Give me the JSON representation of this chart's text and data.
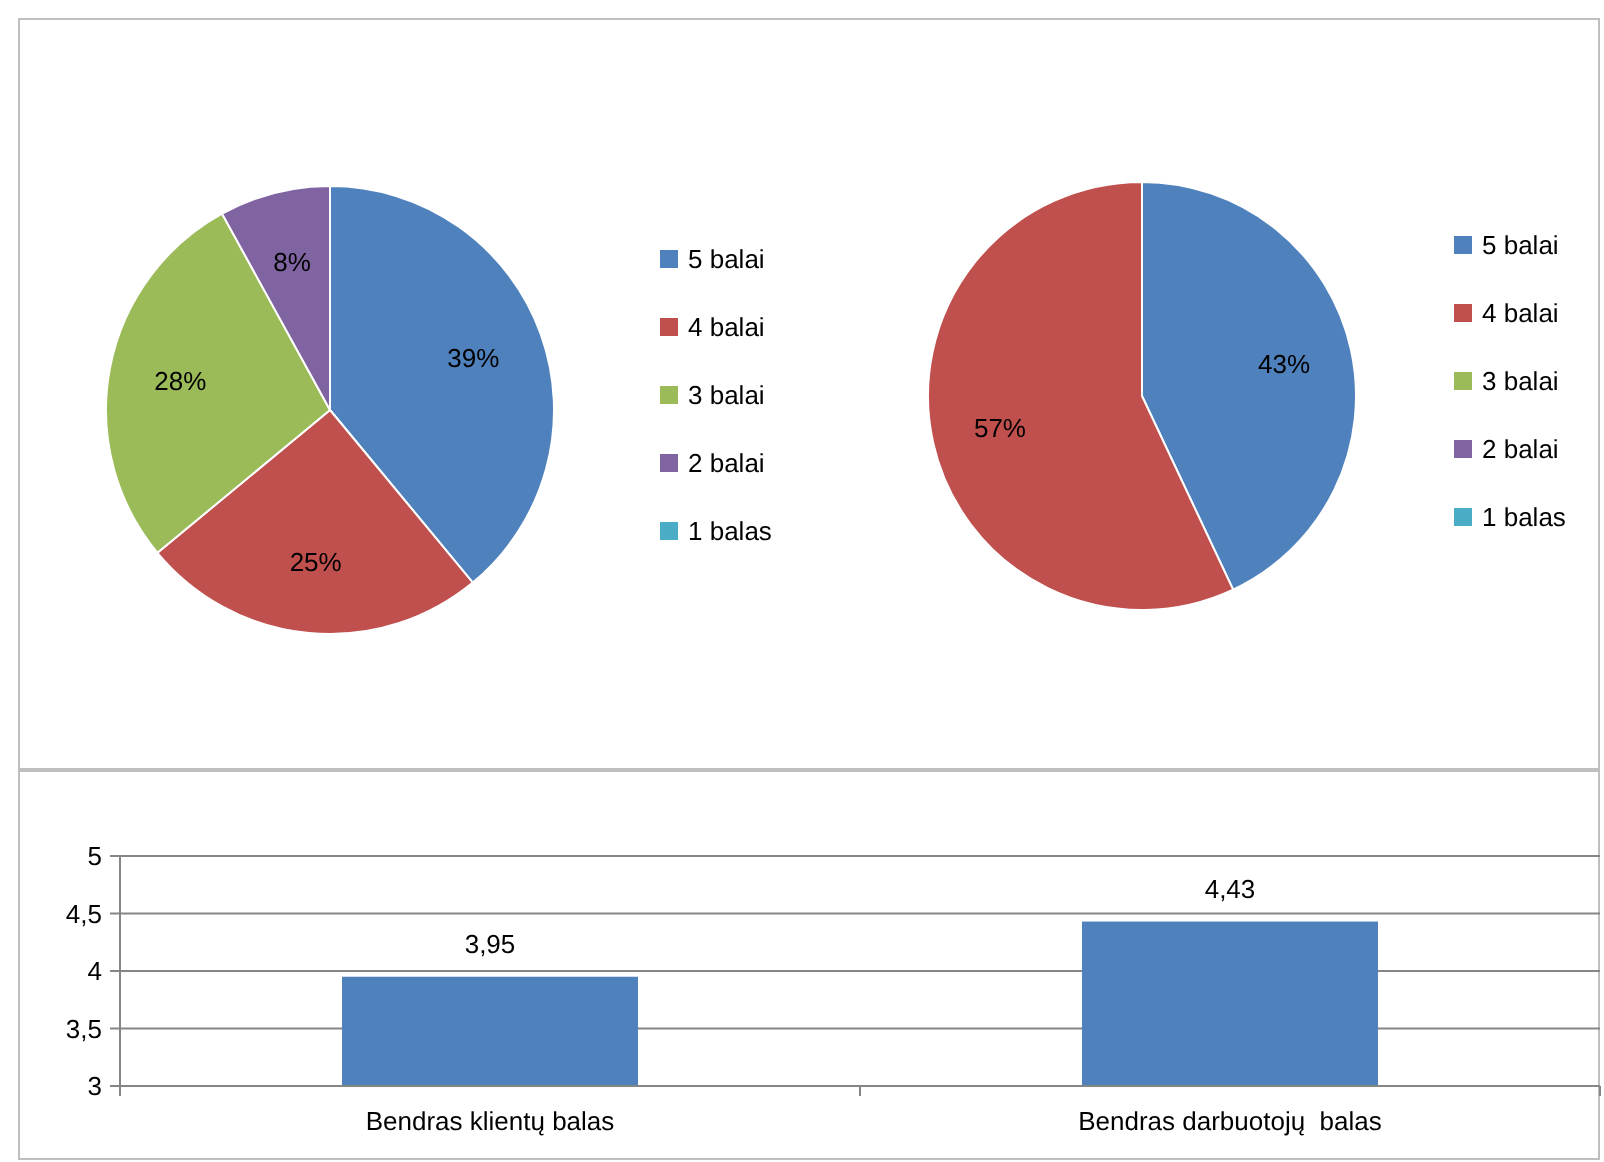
{
  "chart_data": [
    {
      "type": "pie",
      "categories": [
        "5 balai",
        "4 balai",
        "3 balai",
        "2 balai",
        "1 balas"
      ],
      "values": [
        39,
        25,
        28,
        8,
        0
      ],
      "colors": [
        "#4f81bd",
        "#c0504d",
        "#9bbb59",
        "#8064a2",
        "#4bacc6"
      ],
      "value_labels": [
        "39%",
        "25%",
        "28%",
        "8%",
        null
      ],
      "legend": "right"
    },
    {
      "type": "pie",
      "categories": [
        "5 balai",
        "4 balai",
        "3 balai",
        "2 balai",
        "1 balas"
      ],
      "values": [
        43,
        57,
        0,
        0,
        0
      ],
      "colors": [
        "#4f81bd",
        "#c0504d",
        "#9bbb59",
        "#8064a2",
        "#4bacc6"
      ],
      "value_labels": [
        "43%",
        "57%",
        null,
        null,
        null
      ],
      "legend": "right"
    },
    {
      "type": "bar",
      "categories": [
        "Bendras klientų balas",
        "Bendras darbuotojų  balas"
      ],
      "values": [
        3.95,
        4.43
      ],
      "color": "#4f81bd",
      "value_labels": [
        "3,95",
        "4,43"
      ],
      "ylim": [
        3,
        5
      ],
      "yticks": [
        3,
        {
          "value": 3.5,
          "label": "3,5"
        },
        4,
        {
          "value": 4.5,
          "label": "4,5"
        },
        5
      ],
      "grid": "y"
    }
  ]
}
